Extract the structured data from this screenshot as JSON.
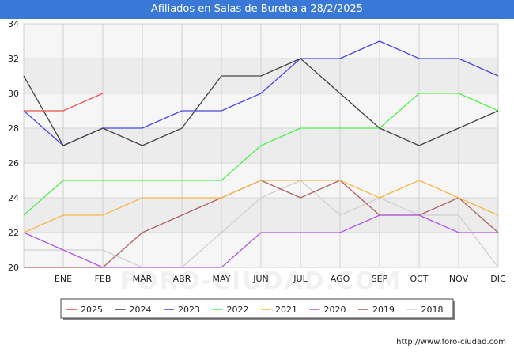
{
  "chart_data": {
    "type": "line",
    "title": "Afiliados en Salas de Bureba a 28/2/2025",
    "xlabel": "",
    "ylabel": "",
    "categories": [
      "",
      "ENE",
      "FEB",
      "MAR",
      "ABR",
      "MAY",
      "JUN",
      "JUL",
      "AGO",
      "SEP",
      "OCT",
      "NOV",
      "DIC"
    ],
    "y_ticks": [
      "20",
      "22",
      "24",
      "26",
      "28",
      "30",
      "32",
      "34"
    ],
    "ylim": [
      20,
      34
    ],
    "grid": true,
    "legend_position": "bottom",
    "series": [
      {
        "name": "2025",
        "color": "#e8534e",
        "values": [
          29,
          29,
          30,
          null,
          null,
          null,
          null,
          null,
          null,
          null,
          null,
          null,
          null
        ]
      },
      {
        "name": "2024",
        "color": "#444444",
        "values": [
          31,
          27,
          28,
          27,
          28,
          31,
          31,
          32,
          30,
          28,
          27,
          28,
          29
        ]
      },
      {
        "name": "2023",
        "color": "#4848e0",
        "values": [
          29,
          27,
          28,
          28,
          29,
          29,
          30,
          32,
          32,
          33,
          32,
          32,
          31
        ]
      },
      {
        "name": "2022",
        "color": "#4cf04c",
        "values": [
          23,
          25,
          25,
          25,
          25,
          25,
          27,
          28,
          28,
          28,
          30,
          30,
          29
        ]
      },
      {
        "name": "2021",
        "color": "#f6b74a",
        "values": [
          22,
          23,
          23,
          24,
          24,
          24,
          25,
          25,
          25,
          24,
          25,
          24,
          23
        ]
      },
      {
        "name": "2020",
        "color": "#b05ae0",
        "values": [
          22,
          21,
          20,
          20,
          20,
          20,
          22,
          22,
          22,
          23,
          23,
          22,
          22
        ]
      },
      {
        "name": "2019",
        "color": "#b06060",
        "values": [
          20,
          20,
          20,
          22,
          23,
          24,
          25,
          24,
          25,
          23,
          23,
          24,
          22
        ]
      },
      {
        "name": "2018",
        "color": "#d0d0d0",
        "values": [
          21,
          21,
          21,
          20,
          20,
          22,
          24,
          25,
          23,
          24,
          23,
          23,
          20
        ]
      }
    ]
  },
  "watermark": "FORO-CIUDAD.COM",
  "source_text": "http://www.foro-ciudad.com"
}
